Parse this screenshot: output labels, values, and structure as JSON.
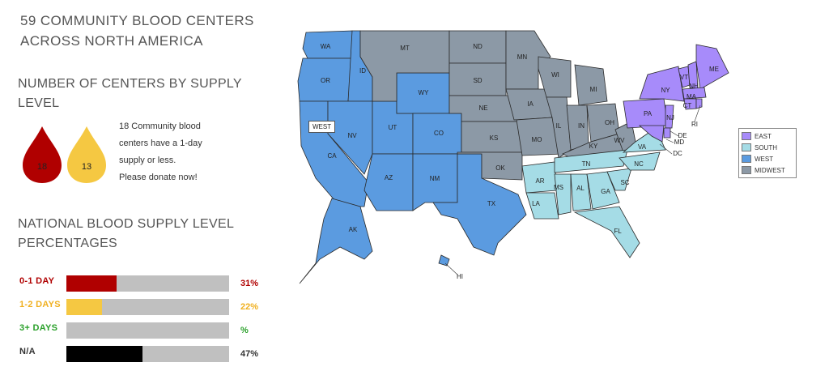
{
  "title": {
    "line1": "59 COMMUNITY BLOOD CENTERS",
    "line2": "ACROSS NORTH AMERICA"
  },
  "centers_by_supply": {
    "heading_line1": "NUMBER OF CENTERS BY SUPPLY",
    "heading_line2": "LEVEL",
    "drops": [
      {
        "value": "18",
        "color": "#b00000"
      },
      {
        "value": "13",
        "color": "#f5c842"
      }
    ],
    "note_lines": [
      "18 Community blood",
      "centers have a 1-day",
      "supply or less.",
      "Please donate now!"
    ]
  },
  "national_supply": {
    "heading_line1": "NATIONAL BLOOD SUPPLY LEVEL",
    "heading_line2": "PERCENTAGES",
    "rows": [
      {
        "label": "0-1 DAY",
        "percent_text": "31%",
        "value": 31,
        "color": "#b00000",
        "label_color": "#b00000"
      },
      {
        "label": "1-2 DAYS",
        "percent_text": "22%",
        "value": 22,
        "color": "#f5c842",
        "label_color": "#f0b020"
      },
      {
        "label": "3+ DAYS",
        "percent_text": "%",
        "value": 0,
        "color": "#2aa02a",
        "label_color": "#2aa02a"
      },
      {
        "label": "N/A",
        "percent_text": "47%",
        "value": 47,
        "color": "#000000",
        "label_color": "#333333"
      }
    ]
  },
  "map": {
    "highlight_box": "WEST",
    "regions": {
      "EAST": "#a78bfa",
      "SOUTH": "#a5dce6",
      "WEST": "#5b9be0",
      "MIDWEST": "#8c99a6"
    },
    "legend": [
      {
        "label": "EAST",
        "color": "#a78bfa"
      },
      {
        "label": "SOUTH",
        "color": "#a5dce6"
      },
      {
        "label": "WEST",
        "color": "#5b9be0"
      },
      {
        "label": "MIDWEST",
        "color": "#8c99a6"
      }
    ],
    "state_labels": [
      "WA",
      "OR",
      "CA",
      "ID",
      "NV",
      "MT",
      "WY",
      "UT",
      "AZ",
      "CO",
      "NM",
      "ND",
      "SD",
      "NE",
      "KS",
      "OK",
      "TX",
      "MN",
      "IA",
      "MO",
      "WI",
      "IL",
      "MI",
      "IN",
      "OH",
      "KY",
      "TN",
      "AR",
      "LA",
      "MS",
      "AL",
      "GA",
      "FL",
      "SC",
      "NC",
      "VA",
      "WV",
      "PA",
      "NY",
      "VT",
      "NH",
      "ME",
      "MA",
      "CT",
      "RI",
      "NJ",
      "DE",
      "MD",
      "DC",
      "AK",
      "HI"
    ]
  }
}
